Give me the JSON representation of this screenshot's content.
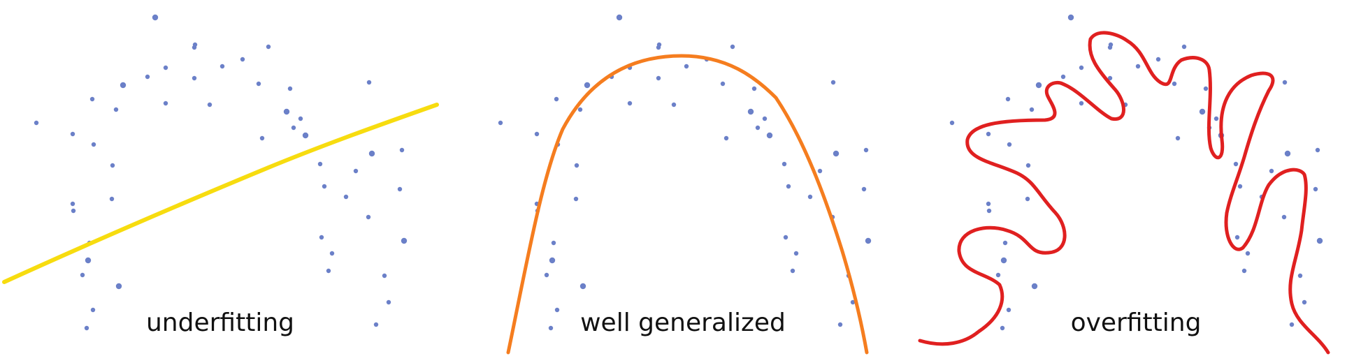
{
  "colors": {
    "points": "#6b80c8",
    "underfit_curve": "#f7dc0f",
    "good_curve": "#f57d1f",
    "overfit_curve": "#e02020"
  },
  "panels": [
    {
      "id": "underfit",
      "label": "underfitting",
      "curve_color_key": "underfit_curve"
    },
    {
      "id": "good",
      "label": "well generalized",
      "curve_color_key": "good_curve"
    },
    {
      "id": "overfit",
      "label": "overfitting",
      "curve_color_key": "overfit_curve"
    }
  ]
}
